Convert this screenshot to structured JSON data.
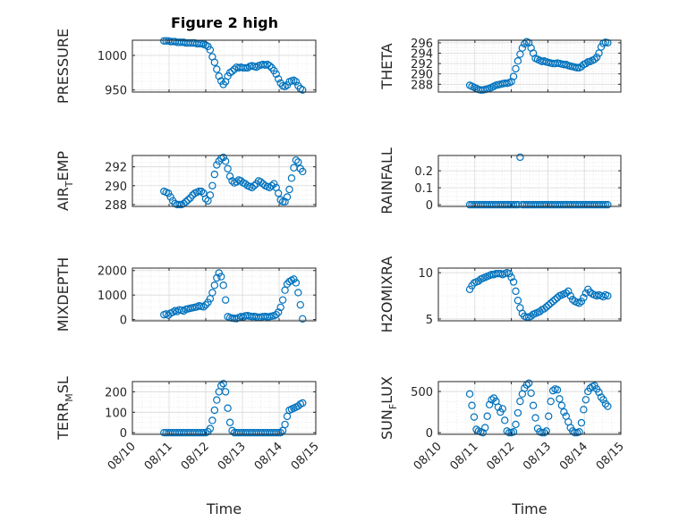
{
  "figure": {
    "title": "Figure 2 high",
    "colors": {
      "series": "#0072BD",
      "axes": "#262626",
      "grid": "#d9d9d9",
      "background": "#ffffff"
    }
  },
  "chart_data": [
    {
      "type": "scatter",
      "ylabel": "PRESSURE",
      "xlim": [
        "08/10",
        "08/15"
      ],
      "ylim": [
        947,
        1022
      ],
      "yticks": [
        950,
        1000
      ],
      "xticks": [
        "08/10",
        "08/11",
        "08/12",
        "08/13",
        "08/14",
        "08/15"
      ],
      "show_xticklabels": false,
      "grid": true,
      "x": [
        0.86,
        0.92,
        0.98,
        1.04,
        1.1,
        1.16,
        1.22,
        1.28,
        1.34,
        1.4,
        1.46,
        1.52,
        1.58,
        1.64,
        1.7,
        1.76,
        1.82,
        1.88,
        1.94,
        2.0,
        2.06,
        2.12,
        2.18,
        2.24,
        2.3,
        2.36,
        2.42,
        2.48,
        2.54,
        2.6,
        2.66,
        2.72,
        2.78,
        2.84,
        2.9,
        2.96,
        3.02,
        3.08,
        3.14,
        3.2,
        3.26,
        3.32,
        3.38,
        3.44,
        3.5,
        3.56,
        3.62,
        3.68,
        3.74,
        3.8,
        3.86,
        3.92,
        3.98,
        4.04,
        4.1,
        4.16,
        4.22,
        4.28,
        4.34,
        4.4,
        4.46,
        4.52,
        4.58,
        4.64
      ],
      "y": [
        1021,
        1021,
        1021,
        1020,
        1020,
        1020,
        1019,
        1019,
        1019,
        1019,
        1018,
        1018,
        1018,
        1018,
        1018,
        1017,
        1017,
        1017,
        1016,
        1015,
        1013,
        1008,
        998,
        990,
        980,
        970,
        963,
        958,
        962,
        970,
        975,
        977,
        980,
        983,
        982,
        983,
        982,
        982,
        982,
        984,
        985,
        984,
        983,
        985,
        986,
        987,
        986,
        987,
        985,
        982,
        978,
        973,
        966,
        960,
        956,
        955,
        957,
        962,
        963,
        964,
        962,
        956,
        952,
        950
      ],
      "series": [
        {
          "name": "PRESSURE"
        }
      ]
    },
    {
      "type": "scatter",
      "ylabel": "THETA",
      "xlim": [
        "08/10",
        "08/15"
      ],
      "ylim": [
        286.5,
        296.5
      ],
      "yticks": [
        288,
        290,
        292,
        294,
        296
      ],
      "xticks": [
        "08/10",
        "08/11",
        "08/12",
        "08/13",
        "08/14",
        "08/15"
      ],
      "show_xticklabels": false,
      "grid": true,
      "x": [
        0.86,
        0.92,
        0.98,
        1.04,
        1.1,
        1.16,
        1.22,
        1.28,
        1.34,
        1.4,
        1.46,
        1.52,
        1.58,
        1.64,
        1.7,
        1.76,
        1.82,
        1.88,
        1.94,
        2.0,
        2.06,
        2.12,
        2.18,
        2.24,
        2.3,
        2.36,
        2.42,
        2.48,
        2.54,
        2.6,
        2.66,
        2.72,
        2.78,
        2.84,
        2.9,
        2.96,
        3.02,
        3.08,
        3.14,
        3.2,
        3.26,
        3.32,
        3.38,
        3.44,
        3.5,
        3.56,
        3.62,
        3.68,
        3.74,
        3.8,
        3.86,
        3.92,
        3.98,
        4.04,
        4.1,
        4.16,
        4.22,
        4.28,
        4.34,
        4.4,
        4.46,
        4.52,
        4.58,
        4.64
      ],
      "y": [
        287.8,
        287.6,
        287.4,
        287.2,
        287.0,
        286.9,
        286.9,
        287.0,
        287.1,
        287.2,
        287.4,
        287.6,
        287.8,
        287.9,
        288.0,
        288.1,
        288.2,
        288.2,
        288.3,
        288.5,
        289.5,
        291.0,
        292.5,
        293.8,
        295.0,
        295.8,
        296.2,
        296.0,
        295.0,
        294.0,
        293.0,
        292.8,
        292.6,
        292.4,
        292.5,
        292.3,
        292.2,
        292.1,
        292.0,
        292.0,
        292.1,
        292.0,
        291.9,
        291.8,
        291.8,
        291.6,
        291.5,
        291.4,
        291.3,
        291.2,
        291.2,
        291.4,
        291.8,
        292.0,
        292.3,
        292.4,
        292.6,
        292.8,
        293.2,
        294.0,
        295.2,
        295.9,
        296.1,
        296.0
      ],
      "series": [
        {
          "name": "THETA"
        }
      ]
    },
    {
      "type": "scatter",
      "ylabel": "AIR_TEMP",
      "xlim": [
        "08/10",
        "08/15"
      ],
      "ylim": [
        287.8,
        293.2
      ],
      "yticks": [
        288,
        290,
        292
      ],
      "xticks": [
        "08/10",
        "08/11",
        "08/12",
        "08/13",
        "08/14",
        "08/15"
      ],
      "show_xticklabels": false,
      "grid": true,
      "x": [
        0.86,
        0.92,
        0.98,
        1.04,
        1.1,
        1.16,
        1.22,
        1.28,
        1.34,
        1.4,
        1.46,
        1.52,
        1.58,
        1.64,
        1.7,
        1.76,
        1.82,
        1.88,
        1.94,
        2.0,
        2.06,
        2.12,
        2.18,
        2.24,
        2.3,
        2.36,
        2.42,
        2.48,
        2.54,
        2.6,
        2.66,
        2.72,
        2.78,
        2.84,
        2.9,
        2.96,
        3.02,
        3.08,
        3.14,
        3.2,
        3.26,
        3.32,
        3.38,
        3.44,
        3.5,
        3.56,
        3.62,
        3.68,
        3.74,
        3.8,
        3.86,
        3.92,
        3.98,
        4.04,
        4.1,
        4.16,
        4.22,
        4.28,
        4.34,
        4.4,
        4.46,
        4.52,
        4.58,
        4.64
      ],
      "y": [
        289.4,
        289.3,
        289.2,
        288.8,
        288.4,
        288.1,
        288.0,
        288.0,
        288.0,
        288.1,
        288.3,
        288.5,
        288.7,
        289.0,
        289.2,
        289.3,
        289.4,
        289.4,
        289.2,
        288.6,
        288.4,
        289.0,
        290.0,
        291.2,
        292.2,
        292.6,
        292.9,
        293.0,
        292.6,
        291.8,
        291.0,
        290.5,
        290.3,
        290.4,
        290.6,
        290.5,
        290.3,
        290.2,
        290.0,
        289.9,
        289.8,
        290.0,
        290.2,
        290.5,
        290.4,
        290.2,
        290.0,
        289.9,
        289.8,
        290.0,
        290.2,
        289.8,
        289.2,
        288.5,
        288.3,
        288.3,
        288.8,
        289.6,
        290.8,
        291.9,
        292.7,
        292.5,
        291.8,
        291.5
      ],
      "series": [
        {
          "name": "AIR_TEMP"
        }
      ]
    },
    {
      "type": "scatter",
      "ylabel": "RAINFALL",
      "xlim": [
        "08/10",
        "08/15"
      ],
      "ylim": [
        -0.01,
        0.29
      ],
      "yticks": [
        0,
        0.1,
        0.2
      ],
      "xticks": [
        "08/10",
        "08/11",
        "08/12",
        "08/13",
        "08/14",
        "08/15"
      ],
      "show_xticklabels": false,
      "grid": true,
      "x": [
        0.86,
        0.92,
        0.98,
        1.04,
        1.1,
        1.16,
        1.22,
        1.28,
        1.34,
        1.4,
        1.46,
        1.52,
        1.58,
        1.64,
        1.7,
        1.76,
        1.82,
        1.88,
        1.94,
        2.0,
        2.06,
        2.12,
        2.18,
        2.24,
        2.3,
        2.36,
        2.42,
        2.48,
        2.54,
        2.6,
        2.66,
        2.72,
        2.78,
        2.84,
        2.9,
        2.96,
        3.02,
        3.08,
        3.14,
        3.2,
        3.26,
        3.32,
        3.38,
        3.44,
        3.5,
        3.56,
        3.62,
        3.68,
        3.74,
        3.8,
        3.86,
        3.92,
        3.98,
        4.04,
        4.1,
        4.16,
        4.22,
        4.28,
        4.34,
        4.4,
        4.46,
        4.52,
        4.58,
        4.64
      ],
      "y": [
        0,
        0,
        0,
        0,
        0,
        0,
        0,
        0,
        0,
        0,
        0,
        0,
        0,
        0,
        0,
        0,
        0,
        0,
        0,
        0,
        0,
        0,
        0,
        0.28,
        0,
        0,
        0,
        0,
        0,
        0,
        0,
        0,
        0,
        0,
        0,
        0,
        0,
        0,
        0,
        0,
        0,
        0,
        0,
        0,
        0,
        0,
        0,
        0,
        0,
        0,
        0,
        0,
        0,
        0,
        0,
        0,
        0,
        0,
        0,
        0,
        0,
        0,
        0,
        0
      ],
      "series": [
        {
          "name": "RAINFALL"
        }
      ]
    },
    {
      "type": "scatter",
      "ylabel": "MIXDEPTH",
      "xlim": [
        "08/10",
        "08/15"
      ],
      "ylim": [
        -50,
        2100
      ],
      "yticks": [
        0,
        1000,
        2000
      ],
      "xticks": [
        "08/10",
        "08/11",
        "08/12",
        "08/13",
        "08/14",
        "08/15"
      ],
      "show_xticklabels": false,
      "grid": true,
      "x": [
        0.86,
        0.92,
        0.98,
        1.04,
        1.1,
        1.16,
        1.22,
        1.28,
        1.34,
        1.4,
        1.46,
        1.52,
        1.58,
        1.64,
        1.7,
        1.76,
        1.82,
        1.88,
        1.94,
        2.0,
        2.06,
        2.12,
        2.18,
        2.24,
        2.3,
        2.36,
        2.42,
        2.48,
        2.54,
        2.6,
        2.66,
        2.72,
        2.78,
        2.84,
        2.9,
        2.96,
        3.02,
        3.08,
        3.14,
        3.2,
        3.26,
        3.32,
        3.38,
        3.44,
        3.5,
        3.56,
        3.62,
        3.68,
        3.74,
        3.8,
        3.86,
        3.92,
        3.98,
        4.04,
        4.1,
        4.16,
        4.22,
        4.28,
        4.34,
        4.4,
        4.46,
        4.52,
        4.58,
        4.64
      ],
      "y": [
        200,
        230,
        180,
        260,
        300,
        360,
        330,
        400,
        380,
        350,
        420,
        440,
        460,
        480,
        500,
        520,
        560,
        540,
        520,
        600,
        700,
        850,
        1100,
        1400,
        1700,
        1900,
        1750,
        1400,
        800,
        120,
        80,
        60,
        50,
        40,
        80,
        120,
        100,
        150,
        160,
        140,
        120,
        130,
        110,
        90,
        100,
        120,
        130,
        110,
        120,
        140,
        160,
        200,
        300,
        500,
        800,
        1200,
        1450,
        1550,
        1600,
        1650,
        1500,
        1100,
        600,
        30
      ],
      "series": [
        {
          "name": "MIXDEPTH"
        }
      ]
    },
    {
      "type": "scatter",
      "ylabel": "H2OMIXRA",
      "xlim": [
        "08/10",
        "08/15"
      ],
      "ylim": [
        4.8,
        10.5
      ],
      "yticks": [
        5,
        10
      ],
      "xticks": [
        "08/10",
        "08/11",
        "08/12",
        "08/13",
        "08/14",
        "08/15"
      ],
      "show_xticklabels": false,
      "grid": true,
      "x": [
        0.86,
        0.92,
        0.98,
        1.04,
        1.1,
        1.16,
        1.22,
        1.28,
        1.34,
        1.4,
        1.46,
        1.52,
        1.58,
        1.64,
        1.7,
        1.76,
        1.82,
        1.88,
        1.94,
        2.0,
        2.06,
        2.12,
        2.18,
        2.24,
        2.3,
        2.36,
        2.42,
        2.48,
        2.54,
        2.6,
        2.66,
        2.72,
        2.78,
        2.84,
        2.9,
        2.96,
        3.02,
        3.08,
        3.14,
        3.2,
        3.26,
        3.32,
        3.38,
        3.44,
        3.5,
        3.56,
        3.62,
        3.68,
        3.74,
        3.8,
        3.86,
        3.92,
        3.98,
        4.04,
        4.1,
        4.16,
        4.22,
        4.28,
        4.34,
        4.4,
        4.46,
        4.52,
        4.58,
        4.64
      ],
      "y": [
        8.2,
        8.6,
        8.9,
        9.0,
        9.1,
        9.3,
        9.4,
        9.5,
        9.6,
        9.7,
        9.8,
        9.8,
        9.9,
        9.9,
        9.9,
        9.8,
        9.9,
        10.0,
        9.9,
        9.5,
        9.0,
        8.0,
        7.0,
        6.2,
        5.6,
        5.3,
        5.2,
        5.2,
        5.3,
        5.5,
        5.6,
        5.7,
        5.8,
        6.0,
        6.1,
        6.3,
        6.5,
        6.7,
        6.9,
        7.1,
        7.3,
        7.5,
        7.6,
        7.7,
        7.8,
        8.0,
        7.5,
        7.1,
        6.9,
        6.8,
        6.7,
        6.9,
        7.3,
        7.8,
        8.2,
        7.9,
        7.7,
        7.6,
        7.5,
        7.6,
        7.5,
        7.4,
        7.6,
        7.5
      ],
      "series": [
        {
          "name": "H2OMIXRA"
        }
      ]
    },
    {
      "type": "scatter",
      "ylabel": "TERR_MSL",
      "xlim": [
        "08/10",
        "08/15"
      ],
      "ylim": [
        -8,
        250
      ],
      "yticks": [
        0,
        100,
        200
      ],
      "xticks": [
        "08/10",
        "08/11",
        "08/12",
        "08/13",
        "08/14",
        "08/15"
      ],
      "show_xticklabels": true,
      "xlabel": "Time",
      "grid": true,
      "x": [
        0.86,
        0.92,
        0.98,
        1.04,
        1.1,
        1.16,
        1.22,
        1.28,
        1.34,
        1.4,
        1.46,
        1.52,
        1.58,
        1.64,
        1.7,
        1.76,
        1.82,
        1.88,
        1.94,
        2.0,
        2.06,
        2.12,
        2.18,
        2.24,
        2.3,
        2.36,
        2.42,
        2.48,
        2.54,
        2.6,
        2.66,
        2.72,
        2.78,
        2.84,
        2.9,
        2.96,
        3.02,
        3.08,
        3.14,
        3.2,
        3.26,
        3.32,
        3.38,
        3.44,
        3.5,
        3.56,
        3.62,
        3.68,
        3.74,
        3.8,
        3.86,
        3.92,
        3.98,
        4.04,
        4.1,
        4.16,
        4.22,
        4.28,
        4.34,
        4.4,
        4.46,
        4.52,
        4.58,
        4.64
      ],
      "y": [
        0,
        0,
        0,
        0,
        0,
        0,
        0,
        0,
        0,
        0,
        0,
        0,
        0,
        0,
        0,
        0,
        0,
        0,
        0,
        0,
        5,
        20,
        60,
        110,
        160,
        200,
        230,
        240,
        200,
        120,
        50,
        10,
        0,
        0,
        0,
        0,
        0,
        0,
        0,
        0,
        0,
        0,
        0,
        0,
        0,
        0,
        0,
        0,
        0,
        0,
        0,
        0,
        0,
        0,
        10,
        40,
        80,
        110,
        115,
        120,
        125,
        130,
        140,
        145
      ],
      "series": [
        {
          "name": "TERR_MSL"
        }
      ]
    },
    {
      "type": "scatter",
      "ylabel": "SUN_FLUX",
      "xlim": [
        "08/10",
        "08/15"
      ],
      "ylim": [
        -20,
        620
      ],
      "yticks": [
        0,
        500
      ],
      "xticks": [
        "08/10",
        "08/11",
        "08/12",
        "08/13",
        "08/14",
        "08/15"
      ],
      "show_xticklabels": true,
      "xlabel": "Time",
      "grid": true,
      "x": [
        0.86,
        0.92,
        0.98,
        1.04,
        1.1,
        1.16,
        1.22,
        1.28,
        1.34,
        1.4,
        1.46,
        1.52,
        1.58,
        1.64,
        1.7,
        1.76,
        1.82,
        1.88,
        1.94,
        2.0,
        2.06,
        2.12,
        2.18,
        2.24,
        2.3,
        2.36,
        2.42,
        2.48,
        2.54,
        2.6,
        2.66,
        2.72,
        2.78,
        2.84,
        2.9,
        2.96,
        3.02,
        3.08,
        3.14,
        3.2,
        3.26,
        3.32,
        3.38,
        3.44,
        3.5,
        3.56,
        3.62,
        3.68,
        3.74,
        3.8,
        3.86,
        3.92,
        3.98,
        4.04,
        4.1,
        4.16,
        4.22,
        4.28,
        4.34,
        4.4,
        4.46,
        4.52,
        4.58,
        4.64
      ],
      "y": [
        470,
        330,
        190,
        40,
        20,
        10,
        0,
        60,
        200,
        340,
        400,
        420,
        380,
        310,
        250,
        290,
        150,
        20,
        0,
        0,
        10,
        100,
        240,
        380,
        470,
        540,
        580,
        600,
        480,
        330,
        180,
        50,
        10,
        0,
        0,
        20,
        200,
        380,
        510,
        530,
        520,
        410,
        330,
        250,
        200,
        130,
        60,
        20,
        0,
        0,
        10,
        120,
        280,
        400,
        500,
        540,
        560,
        570,
        530,
        490,
        430,
        400,
        350,
        320
      ],
      "series": [
        {
          "name": "SUN_FLUX"
        }
      ]
    }
  ]
}
